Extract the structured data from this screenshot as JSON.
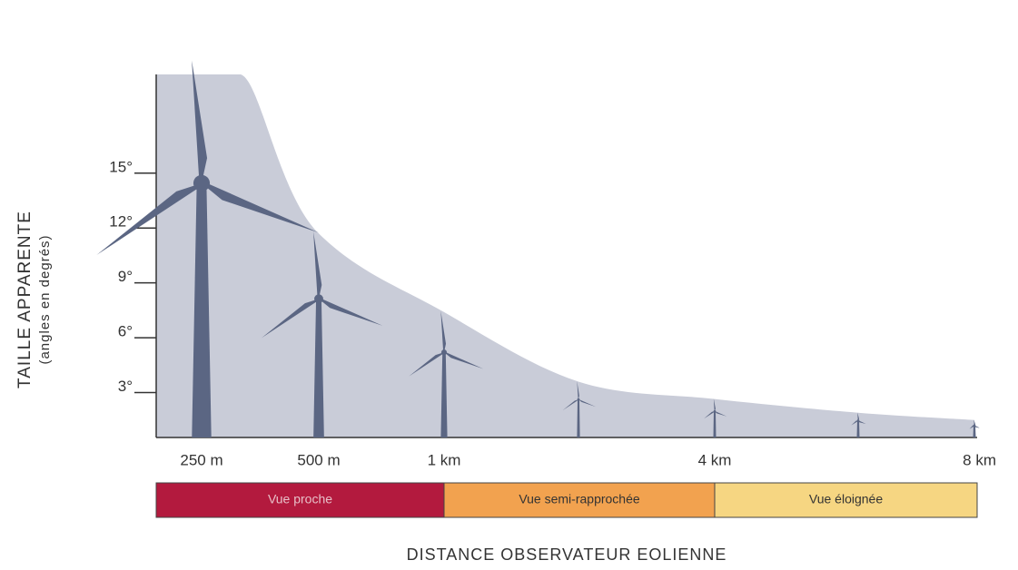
{
  "chart_data": {
    "type": "area",
    "y_label": "TAILLE APPARENTE",
    "y_sublabel": "(angles en degrés)",
    "x_label": "DISTANCE OBSERVATEUR EOLIENNE",
    "categories": [
      "250 m",
      "500 m",
      "1 km",
      null,
      "4 km",
      null,
      "8 km"
    ],
    "values": [
      20.4,
      11.7,
      7.4,
      3.6,
      2.65,
      1.9,
      1.5
    ],
    "color": "#c9ccd8",
    "turbine_color": "#5b6683",
    "ylim": [
      0,
      20.4
    ],
    "yticks": [
      {
        "value": 3,
        "label": "3°"
      },
      {
        "value": 6,
        "label": "6°"
      },
      {
        "value": 9,
        "label": "9°"
      },
      {
        "value": 12,
        "label": "12°"
      },
      {
        "value": 15,
        "label": "15°"
      }
    ],
    "zones": [
      {
        "label": "Vue proche",
        "color": "#b31a3e"
      },
      {
        "label": "Vue semi-rapprochée",
        "color": "#f2a24f"
      },
      {
        "label": "Vue éloignée",
        "color": "#f6d682"
      }
    ]
  }
}
